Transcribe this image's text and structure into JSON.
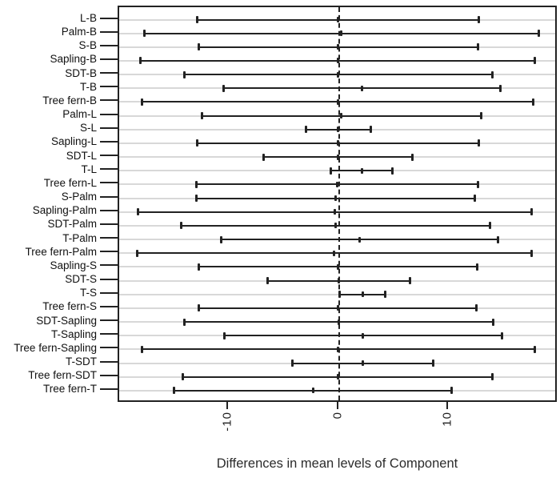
{
  "chart_data": {
    "type": "scatter",
    "subtype": "tukey-hsd-confidence-intervals",
    "title": "",
    "xlabel": "Differences in mean levels of Component",
    "ylabel": "",
    "xlim": [
      -19.95,
      19.95
    ],
    "x_ticks": [
      -10,
      0,
      10
    ],
    "x_tick_labels": [
      "-10",
      "0",
      "10"
    ],
    "zero_reference_line_x": 0,
    "grid": "light-gray horizontal reference line per row",
    "legend_position": "none",
    "colors": {
      "interval": "#222222",
      "reference_line": "#d8d8d8",
      "zero_line": "#222222",
      "box": "#222222",
      "background": "#ffffff"
    },
    "comparisons": [
      {
        "label": "L-B",
        "lower": -12.85,
        "diff": -0.05,
        "upper": 12.75
      },
      {
        "label": "Palm-B",
        "lower": -17.65,
        "diff": 0.25,
        "upper": 18.15
      },
      {
        "label": "S-B",
        "lower": -12.75,
        "diff": -0.05,
        "upper": 12.65
      },
      {
        "label": "Sapling-B",
        "lower": -18.0,
        "diff": -0.1,
        "upper": 17.8
      },
      {
        "label": "SDT-B",
        "lower": -14.05,
        "diff": -0.05,
        "upper": 13.95
      },
      {
        "label": "T-B",
        "lower": -10.5,
        "diff": 2.1,
        "upper": 14.7
      },
      {
        "label": "Tree fern-B",
        "lower": -17.85,
        "diff": -0.1,
        "upper": 17.65
      },
      {
        "label": "Palm-L",
        "lower": -12.45,
        "diff": 0.25,
        "upper": 12.95
      },
      {
        "label": "S-L",
        "lower": -3.0,
        "diff": -0.05,
        "upper": 2.9
      },
      {
        "label": "Sapling-L",
        "lower": -12.9,
        "diff": -0.1,
        "upper": 12.7
      },
      {
        "label": "SDT-L",
        "lower": -6.85,
        "diff": -0.1,
        "upper": 6.65
      },
      {
        "label": "T-L",
        "lower": -0.7,
        "diff": 2.1,
        "upper": 4.9
      },
      {
        "label": "Tree fern-L",
        "lower": -12.95,
        "diff": -0.15,
        "upper": 12.65
      },
      {
        "label": "S-Palm",
        "lower": -12.95,
        "diff": -0.3,
        "upper": 12.35
      },
      {
        "label": "Sapling-Palm",
        "lower": -18.25,
        "diff": -0.35,
        "upper": 17.55
      },
      {
        "label": "SDT-Palm",
        "lower": -14.3,
        "diff": -0.3,
        "upper": 13.7
      },
      {
        "label": "T-Palm",
        "lower": -10.65,
        "diff": 1.9,
        "upper": 14.45
      },
      {
        "label": "Tree fern-Palm",
        "lower": -18.3,
        "diff": -0.4,
        "upper": 17.5
      },
      {
        "label": "Sapling-S",
        "lower": -12.75,
        "diff": -0.1,
        "upper": 12.55
      },
      {
        "label": "SDT-S",
        "lower": -6.5,
        "diff": 0.0,
        "upper": 6.5
      },
      {
        "label": "T-S",
        "lower": 0.05,
        "diff": 2.15,
        "upper": 4.25
      },
      {
        "label": "Tree fern-S",
        "lower": -12.7,
        "diff": -0.1,
        "upper": 12.5
      },
      {
        "label": "SDT-Sapling",
        "lower": -14.0,
        "diff": 0.0,
        "upper": 14.0
      },
      {
        "label": "T-Sapling",
        "lower": -10.4,
        "diff": 2.2,
        "upper": 14.8
      },
      {
        "label": "Tree fern-Sapling",
        "lower": -17.9,
        "diff": -0.05,
        "upper": 17.8
      },
      {
        "label": "T-SDT",
        "lower": -4.25,
        "diff": 2.15,
        "upper": 8.55
      },
      {
        "label": "Tree fern-SDT",
        "lower": -14.15,
        "diff": -0.1,
        "upper": 13.95
      },
      {
        "label": "Tree fern-T",
        "lower": -14.95,
        "diff": -2.35,
        "upper": 10.25
      }
    ]
  }
}
